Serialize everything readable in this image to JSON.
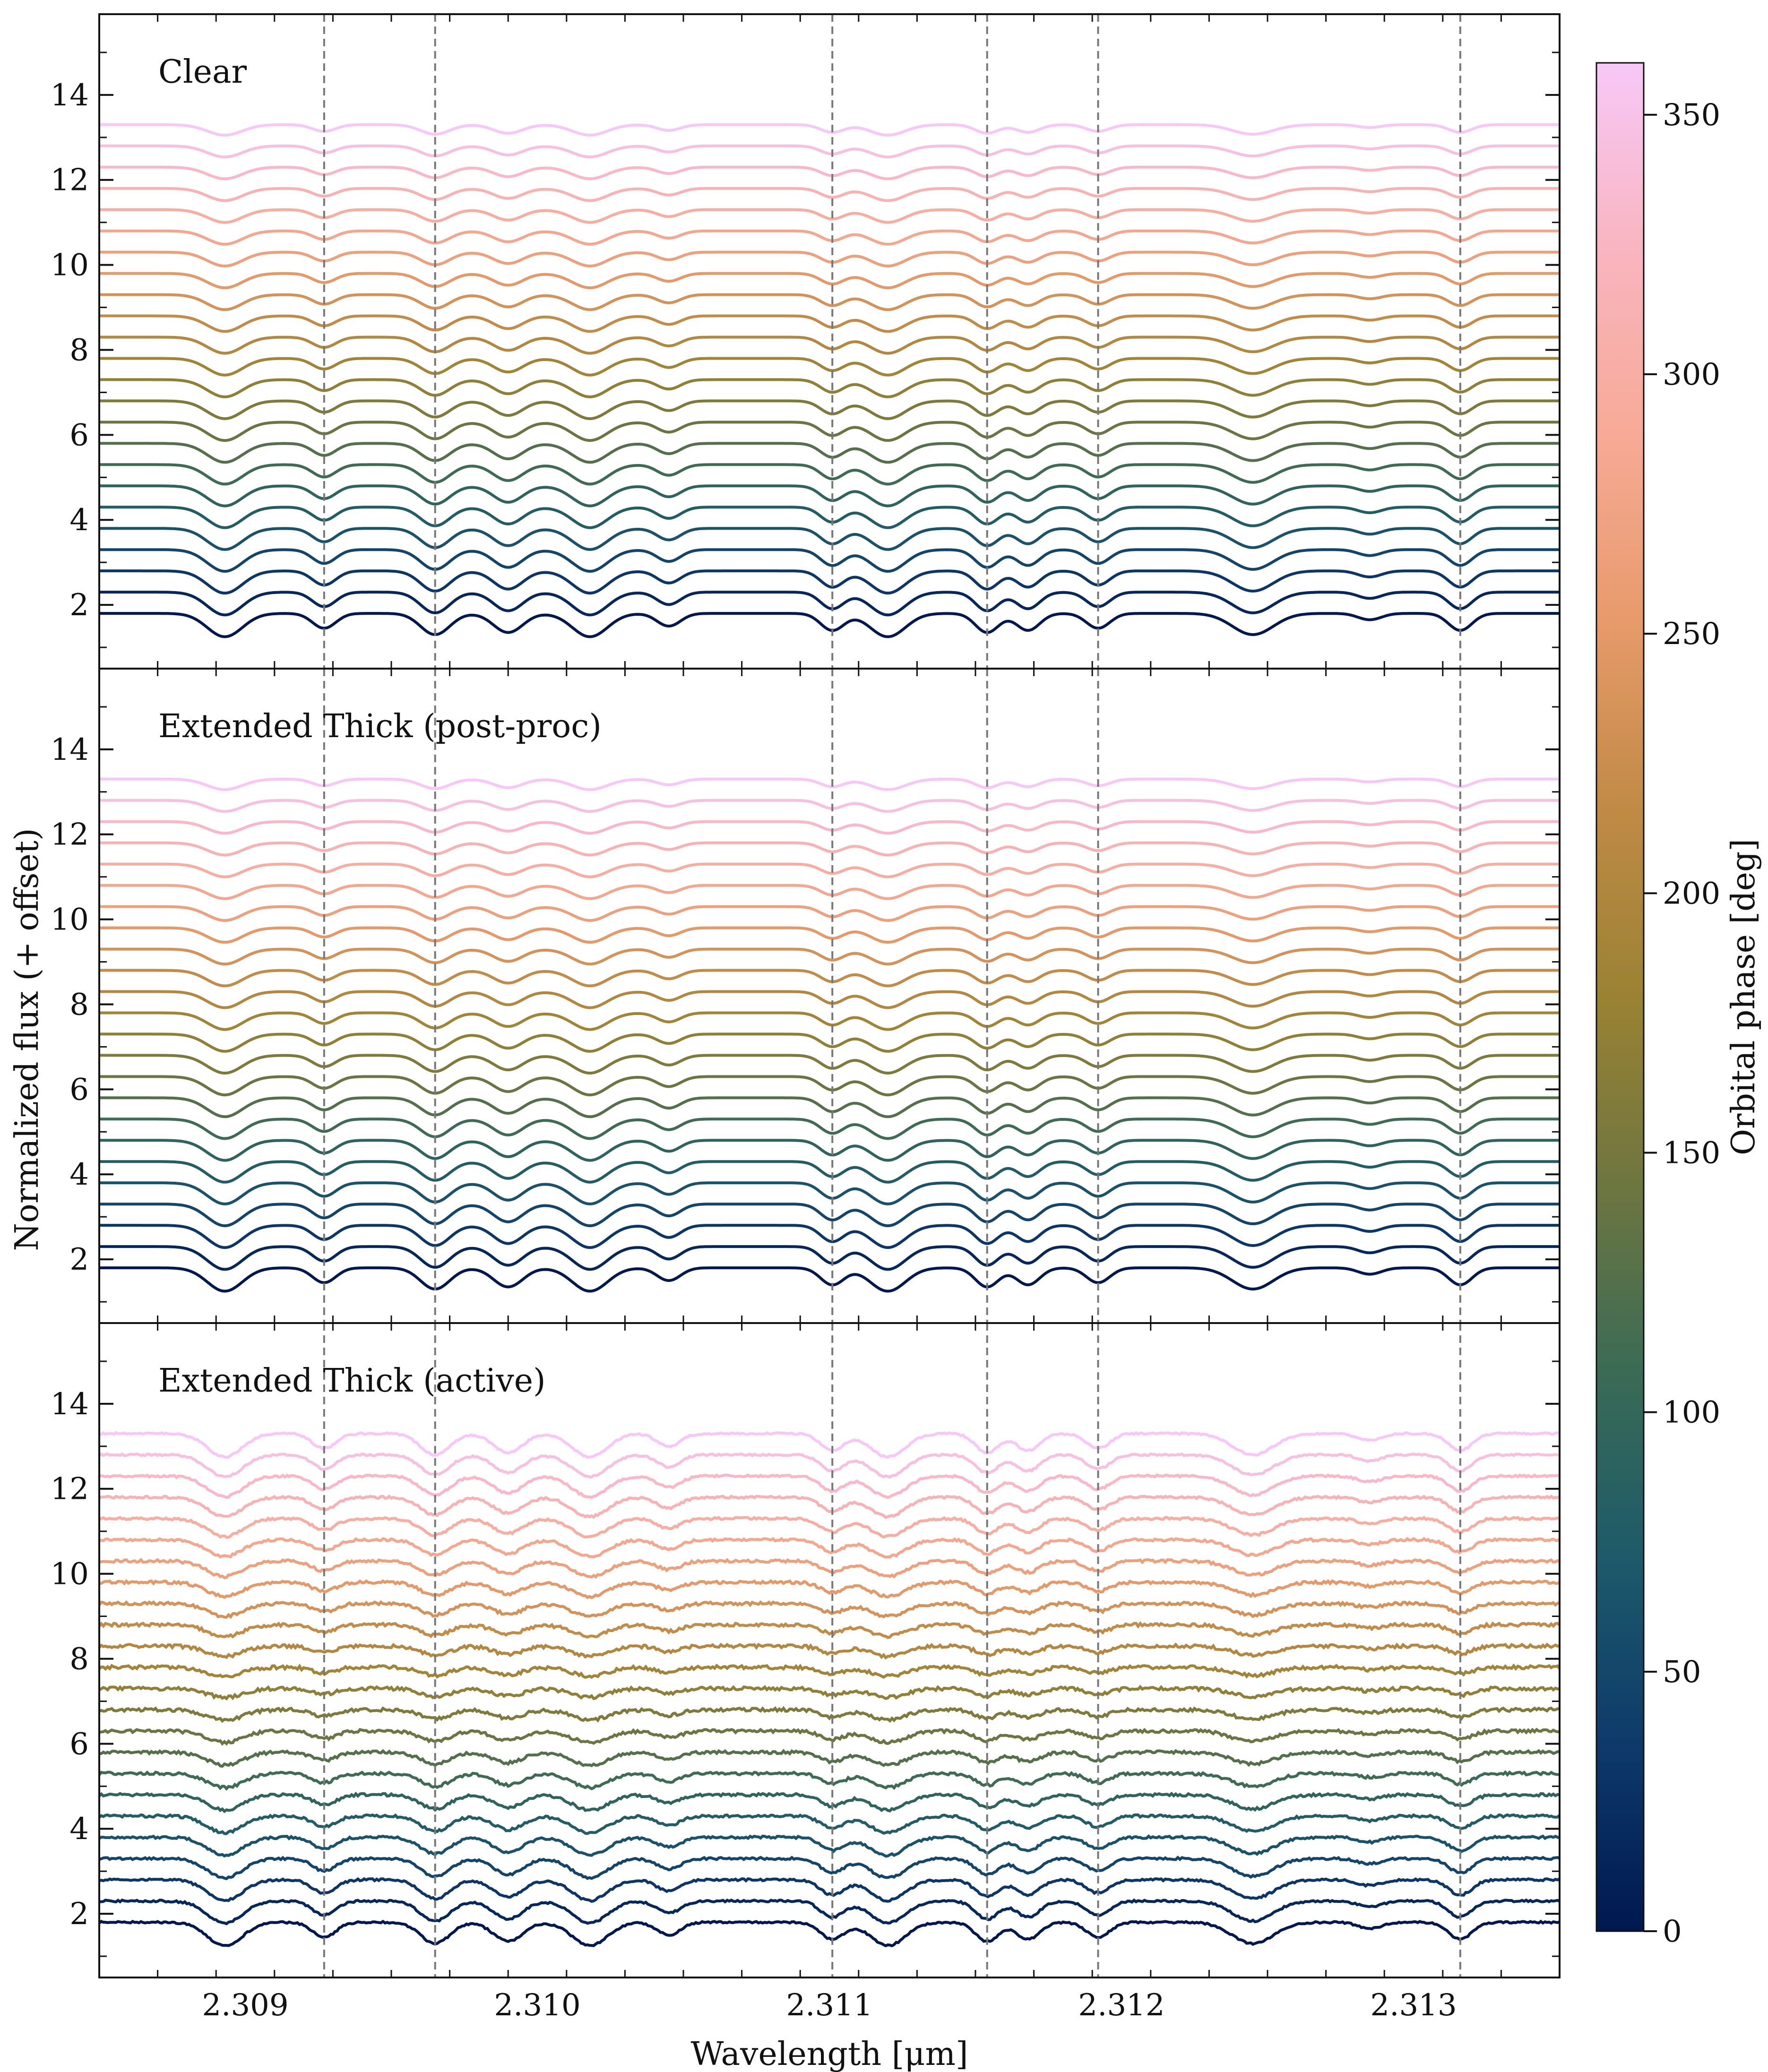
{
  "chart_data": {
    "type": "line",
    "xlabel": "Wavelength [μm]",
    "ylabel": "Normalized flux (+ offset)",
    "xlim": [
      2.3085,
      2.3135
    ],
    "ylim": [
      0.5,
      15.9
    ],
    "x_ticks": [
      2.309,
      2.31,
      2.311,
      2.312,
      2.313
    ],
    "x_tick_labels": [
      "2.309",
      "2.310",
      "2.311",
      "2.312",
      "2.313"
    ],
    "y_ticks": [
      2,
      4,
      6,
      8,
      10,
      12,
      14
    ],
    "y_tick_labels": [
      "2",
      "4",
      "6",
      "8",
      "10",
      "12",
      "14"
    ],
    "vlines": [
      2.30927,
      2.30965,
      2.31101,
      2.31154,
      2.31192,
      2.31316
    ],
    "vline_style": "dashed gray",
    "n_spectra_per_panel": 24,
    "offset_step": 0.5,
    "first_offset": 1.8,
    "phase_range_deg": [
      0,
      360
    ],
    "colormap": [
      "#001850",
      "#0e3a6a",
      "#1d5a6a",
      "#3b6b55",
      "#6e7640",
      "#9a8233",
      "#c08a45",
      "#e79a6a",
      "#f7aa96",
      "#f9b5c0",
      "#f7c8f7"
    ],
    "colorbar": {
      "label": "Orbital phase [deg]",
      "ticks": [
        0,
        50,
        100,
        150,
        200,
        250,
        300,
        350
      ],
      "tick_labels": [
        "0",
        "50",
        "100",
        "150",
        "200",
        "250",
        "300",
        "350"
      ],
      "range": [
        0,
        360
      ]
    },
    "absorption_lines": [
      {
        "x": 2.30893,
        "depth": 0.55,
        "width": 6e-05
      },
      {
        "x": 2.30927,
        "depth": 0.35,
        "width": 4e-05
      },
      {
        "x": 2.30965,
        "depth": 0.5,
        "width": 5e-05
      },
      {
        "x": 2.3099,
        "depth": 0.45,
        "width": 5e-05
      },
      {
        "x": 2.31018,
        "depth": 0.55,
        "width": 6e-05
      },
      {
        "x": 2.31045,
        "depth": 0.3,
        "width": 4e-05
      },
      {
        "x": 2.31101,
        "depth": 0.4,
        "width": 4e-05
      },
      {
        "x": 2.3112,
        "depth": 0.55,
        "width": 6e-05
      },
      {
        "x": 2.31154,
        "depth": 0.45,
        "width": 4e-05
      },
      {
        "x": 2.31168,
        "depth": 0.4,
        "width": 4e-05
      },
      {
        "x": 2.31192,
        "depth": 0.35,
        "width": 4e-05
      },
      {
        "x": 2.31245,
        "depth": 0.5,
        "width": 7e-05
      },
      {
        "x": 2.31285,
        "depth": 0.15,
        "width": 4e-05
      },
      {
        "x": 2.31316,
        "depth": 0.4,
        "width": 4e-05
      }
    ],
    "panels": [
      {
        "label": "Clear",
        "style": "smooth"
      },
      {
        "label": "Extended Thick (post-proc)",
        "style": "smooth"
      },
      {
        "label": "Extended Thick (active)",
        "style": "noisy"
      }
    ]
  }
}
